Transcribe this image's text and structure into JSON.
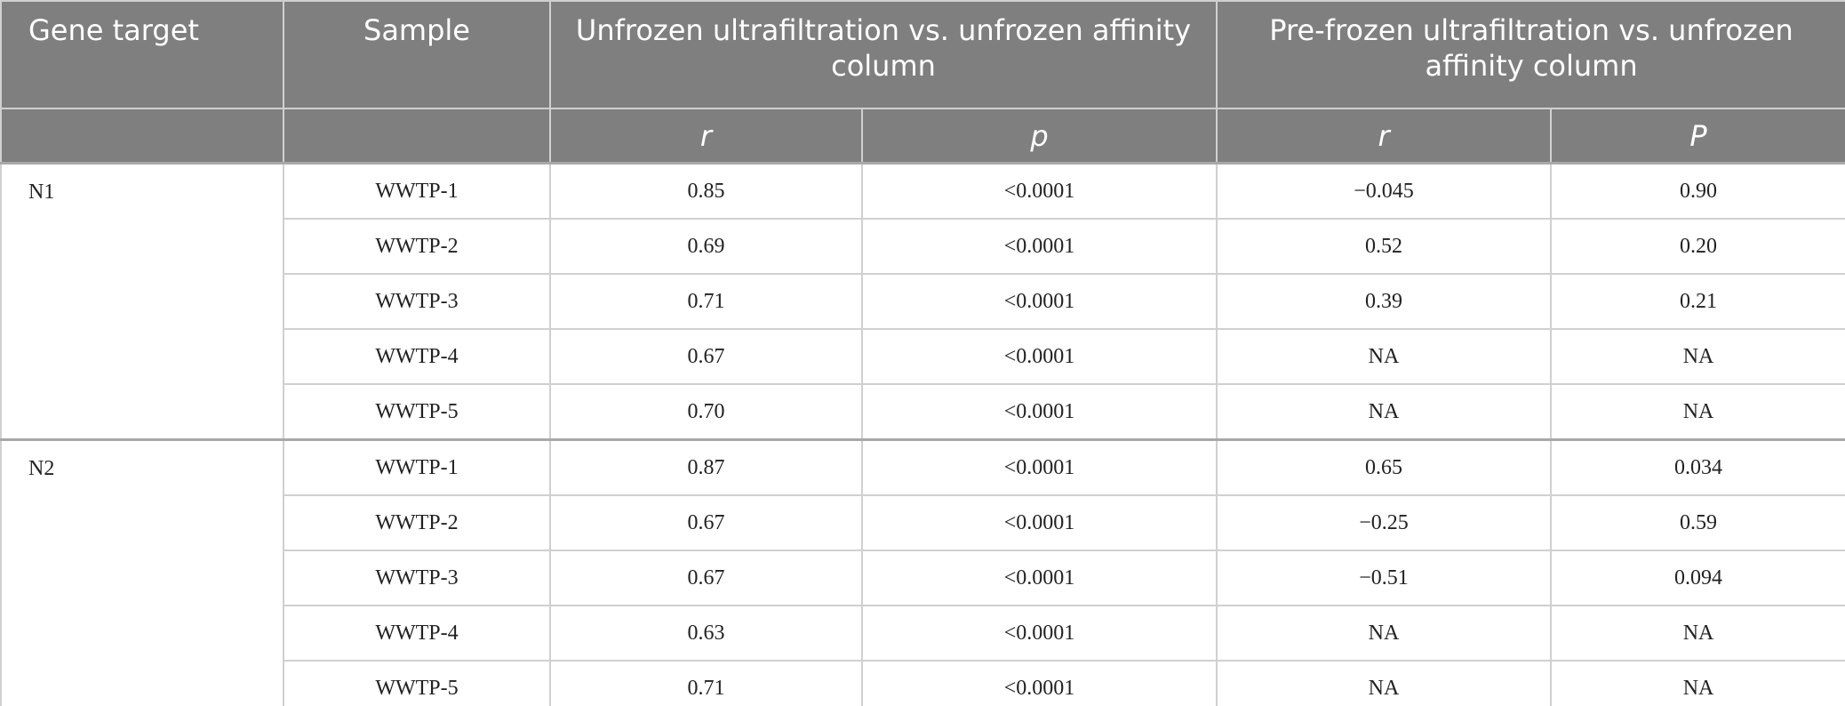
{
  "table": {
    "header": {
      "row1": [
        "Gene target",
        "Sample",
        "Unfrozen ultrafiltration vs. unfrozen affinity column",
        "Pre-frozen ultrafiltration vs. unfrozen affinity column"
      ],
      "row2": [
        "r",
        "p",
        "r",
        "P"
      ]
    },
    "groups": [
      {
        "gene": "N1",
        "rows": [
          [
            "WWTP-1",
            "0.85",
            "<0.0001",
            "−0.045",
            "0.90"
          ],
          [
            "WWTP-2",
            "0.69",
            "<0.0001",
            "0.52",
            "0.20"
          ],
          [
            "WWTP-3",
            "0.71",
            "<0.0001",
            "0.39",
            "0.21"
          ],
          [
            "WWTP-4",
            "0.67",
            "<0.0001",
            "NA",
            "NA"
          ],
          [
            "WWTP-5",
            "0.70",
            "<0.0001",
            "NA",
            "NA"
          ]
        ]
      },
      {
        "gene": "N2",
        "rows": [
          [
            "WWTP-1",
            "0.87",
            "<0.0001",
            "0.65",
            "0.034"
          ],
          [
            "WWTP-2",
            "0.67",
            "<0.0001",
            "−0.25",
            "0.59"
          ],
          [
            "WWTP-3",
            "0.67",
            "<0.0001",
            "−0.51",
            "0.094"
          ],
          [
            "WWTP-4",
            "0.63",
            "<0.0001",
            "NA",
            "NA"
          ],
          [
            "WWTP-5",
            "0.71",
            "<0.0001",
            "NA",
            "NA"
          ]
        ]
      }
    ]
  }
}
